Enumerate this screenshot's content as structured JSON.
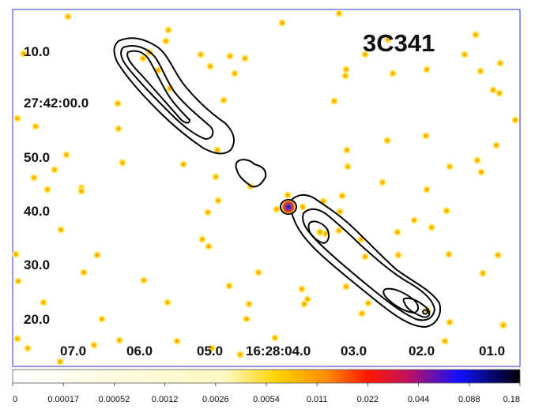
{
  "source_name": "3C341",
  "ra_labels": [
    "07.0",
    "06.0",
    "05.0",
    "16:28:04.0",
    "03.0",
    "02.0",
    "01.0"
  ],
  "dec_labels": [
    "10.0",
    "27:42:00.0",
    "50.0",
    "40.0",
    "30.0",
    "20.0"
  ],
  "colorbar": {
    "ticks": [
      "0",
      "0.00017",
      "0.00052",
      "0.0012",
      "0.0026",
      "0.0054",
      "0.011",
      "0.022",
      "0.044",
      "0.088",
      "0.18"
    ],
    "colormap": [
      "#ffffff",
      "#fff8c0",
      "#ffd400",
      "#ff8a00",
      "#ff1a00",
      "#c01060",
      "#1010ff",
      "#000000"
    ]
  },
  "colors": {
    "frame": "#5050d0",
    "contour": "#000000",
    "event_core": "#ffd000",
    "event_halo": "#fff0a0"
  }
}
